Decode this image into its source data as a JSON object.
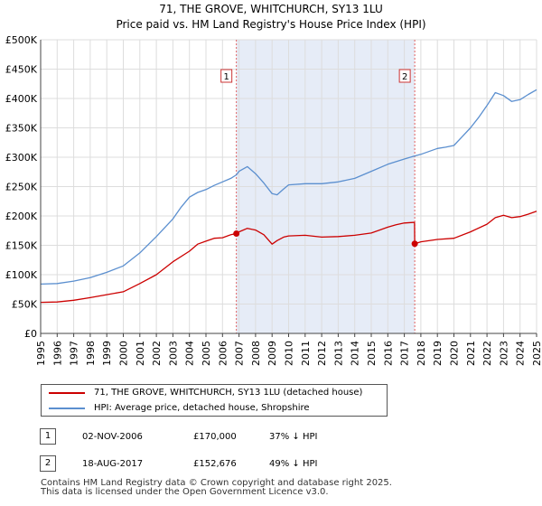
{
  "chart_data": {
    "type": "line",
    "title": "71, THE GROVE, WHITCHURCH, SY13 1LU",
    "subtitle": "Price paid vs. HM Land Registry's House Price Index (HPI)",
    "xlim": [
      1995,
      2025
    ],
    "ylim": [
      0,
      500000
    ],
    "x_ticks": [
      "1995",
      "1996",
      "1997",
      "1998",
      "1999",
      "2000",
      "2001",
      "2002",
      "2003",
      "2004",
      "2005",
      "2006",
      "2007",
      "2008",
      "2009",
      "2010",
      "2011",
      "2012",
      "2013",
      "2014",
      "2015",
      "2016",
      "2017",
      "2018",
      "2019",
      "2020",
      "2021",
      "2022",
      "2023",
      "2024",
      "2025"
    ],
    "y_ticks": [
      {
        "value": 0,
        "label": "£0"
      },
      {
        "value": 50000,
        "label": "£50K"
      },
      {
        "value": 100000,
        "label": "£100K"
      },
      {
        "value": 150000,
        "label": "£150K"
      },
      {
        "value": 200000,
        "label": "£200K"
      },
      {
        "value": 250000,
        "label": "£250K"
      },
      {
        "value": 300000,
        "label": "£300K"
      },
      {
        "value": 350000,
        "label": "£350K"
      },
      {
        "value": 400000,
        "label": "£400K"
      },
      {
        "value": 450000,
        "label": "£450K"
      },
      {
        "value": 500000,
        "label": "£500K"
      }
    ],
    "grid": true,
    "shaded_region": [
      2006.84,
      2017.63
    ],
    "series": [
      {
        "name": "71, THE GROVE, WHITCHURCH, SY13 1LU (detached house)",
        "color": "#cc0000",
        "x": [
          1995.0,
          1996.0,
          1997.0,
          1998.0,
          1999.0,
          2000.0,
          2001.0,
          2002.0,
          2003.0,
          2004.0,
          2004.5,
          2005.0,
          2005.5,
          2006.0,
          2006.5,
          2006.84,
          2007.0,
          2007.5,
          2008.0,
          2008.5,
          2009.0,
          2009.3,
          2009.7,
          2010.0,
          2011.0,
          2012.0,
          2013.0,
          2014.0,
          2015.0,
          2016.0,
          2016.5,
          2017.0,
          2017.5,
          2017.62,
          2017.63,
          2018.0,
          2019.0,
          2020.0,
          2021.0,
          2022.0,
          2022.5,
          2023.0,
          2023.5,
          2024.0,
          2024.5,
          2025.0
        ],
        "values": [
          53000,
          53500,
          56500,
          61000,
          66000,
          71000,
          85000,
          100000,
          122000,
          140000,
          152000,
          157000,
          162000,
          163000,
          168000,
          170000,
          173000,
          179000,
          176000,
          168000,
          152000,
          158000,
          164000,
          166000,
          167000,
          164000,
          165000,
          167000,
          171000,
          181000,
          185000,
          188000,
          189000,
          189000,
          152676,
          156000,
          160000,
          162000,
          173000,
          186000,
          197000,
          201000,
          197000,
          199000,
          203000,
          208000
        ]
      },
      {
        "name": "HPI: Average price, detached house, Shropshire",
        "color": "#5b8fcf",
        "x": [
          1995.0,
          1996.0,
          1997.0,
          1998.0,
          1999.0,
          2000.0,
          2001.0,
          2002.0,
          2003.0,
          2003.5,
          2004.0,
          2004.5,
          2005.0,
          2005.5,
          2006.0,
          2006.5,
          2006.84,
          2007.0,
          2007.5,
          2008.0,
          2008.5,
          2009.0,
          2009.3,
          2009.7,
          2010.0,
          2011.0,
          2012.0,
          2013.0,
          2014.0,
          2015.0,
          2016.0,
          2017.0,
          2017.5,
          2018.0,
          2019.0,
          2019.5,
          2020.0,
          2020.5,
          2021.0,
          2021.5,
          2022.0,
          2022.5,
          2023.0,
          2023.5,
          2024.0,
          2024.5,
          2025.0
        ],
        "values": [
          84000,
          85000,
          89000,
          95000,
          104000,
          115000,
          137000,
          165000,
          195000,
          215000,
          232000,
          240000,
          245000,
          252000,
          258000,
          264000,
          270000,
          276000,
          284000,
          272000,
          256000,
          238000,
          236000,
          246000,
          253000,
          255000,
          255000,
          258000,
          264000,
          276000,
          288000,
          297000,
          301000,
          305000,
          315000,
          317000,
          320000,
          335000,
          350000,
          368000,
          388000,
          410000,
          405000,
          395000,
          398000,
          407000,
          415000
        ]
      }
    ],
    "annotations": [
      {
        "label": "1",
        "x": 2006.84
      },
      {
        "label": "2",
        "x": 2017.63
      }
    ],
    "markers": [
      {
        "x": 2006.84,
        "value": 170000
      },
      {
        "x": 2017.63,
        "value": 152676
      }
    ]
  },
  "legend": {
    "items": [
      {
        "label": "71, THE GROVE, WHITCHURCH, SY13 1LU (detached house)",
        "color": "#cc0000"
      },
      {
        "label": "HPI: Average price, detached house, Shropshire",
        "color": "#5b8fcf"
      }
    ]
  },
  "sales": [
    {
      "num": "1",
      "date": "02-NOV-2006",
      "price": "£170,000",
      "hpi": "37% ↓ HPI"
    },
    {
      "num": "2",
      "date": "18-AUG-2017",
      "price": "£152,676",
      "hpi": "49% ↓ HPI"
    }
  ],
  "footer": {
    "line1": "Contains HM Land Registry data © Crown copyright and database right 2025.",
    "line2": "This data is licensed under the Open Government Licence v3.0."
  }
}
